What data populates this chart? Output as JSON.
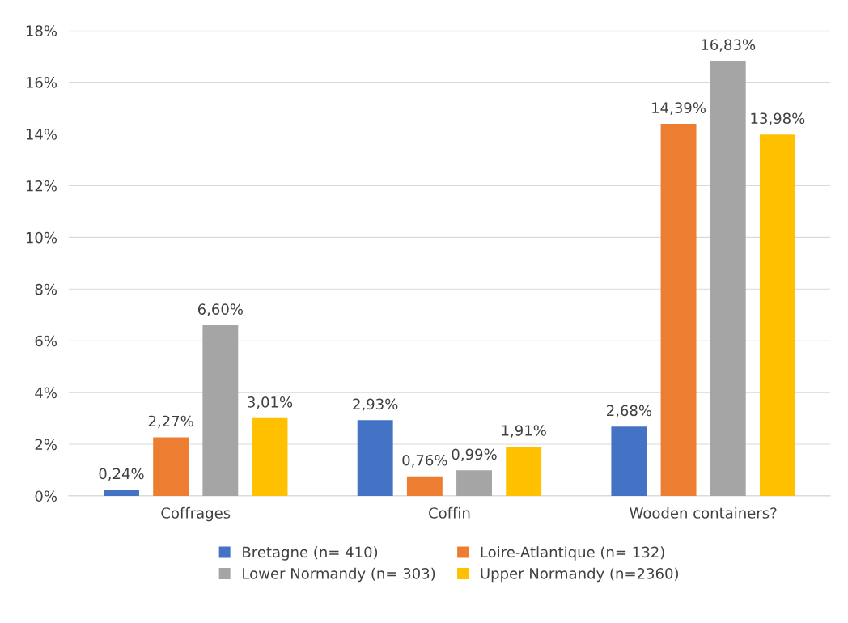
{
  "chart_data": {
    "type": "bar",
    "categories": [
      "Coffrages",
      "Coffin",
      "Wooden containers?"
    ],
    "series": [
      {
        "name": "Bretagne (n= 410)",
        "color": "#4472c4",
        "values": [
          0.24,
          2.93,
          2.68
        ],
        "value_labels": [
          "0,24%",
          "2,93%",
          "2,68%"
        ]
      },
      {
        "name": "Loire-Atlantique (n= 132)",
        "color": "#ed7d31",
        "values": [
          2.27,
          0.76,
          14.39
        ],
        "value_labels": [
          "2,27%",
          "0,76%",
          "14,39%"
        ]
      },
      {
        "name": "Lower Normandy (n= 303)",
        "color": "#a5a5a5",
        "values": [
          6.6,
          0.99,
          16.83
        ],
        "value_labels": [
          "6,60%",
          "0,99%",
          "16,83%"
        ]
      },
      {
        "name": "Upper Normandy (n=2360)",
        "color": "#ffc000",
        "values": [
          3.01,
          1.91,
          13.98
        ],
        "value_labels": [
          "3,01%",
          "1,91%",
          "13,98%"
        ]
      }
    ],
    "ylim": [
      0,
      18
    ],
    "yticks": [
      {
        "value": 0,
        "label": "0%"
      },
      {
        "value": 2,
        "label": "2%"
      },
      {
        "value": 4,
        "label": "4%"
      },
      {
        "value": 6,
        "label": "6%"
      },
      {
        "value": 8,
        "label": "8%"
      },
      {
        "value": 10,
        "label": "10%"
      },
      {
        "value": 12,
        "label": "12%"
      },
      {
        "value": 14,
        "label": "14%"
      },
      {
        "value": 16,
        "label": "16%"
      },
      {
        "value": 18,
        "label": "18%"
      }
    ],
    "grid": "y",
    "legend": "bottom"
  }
}
